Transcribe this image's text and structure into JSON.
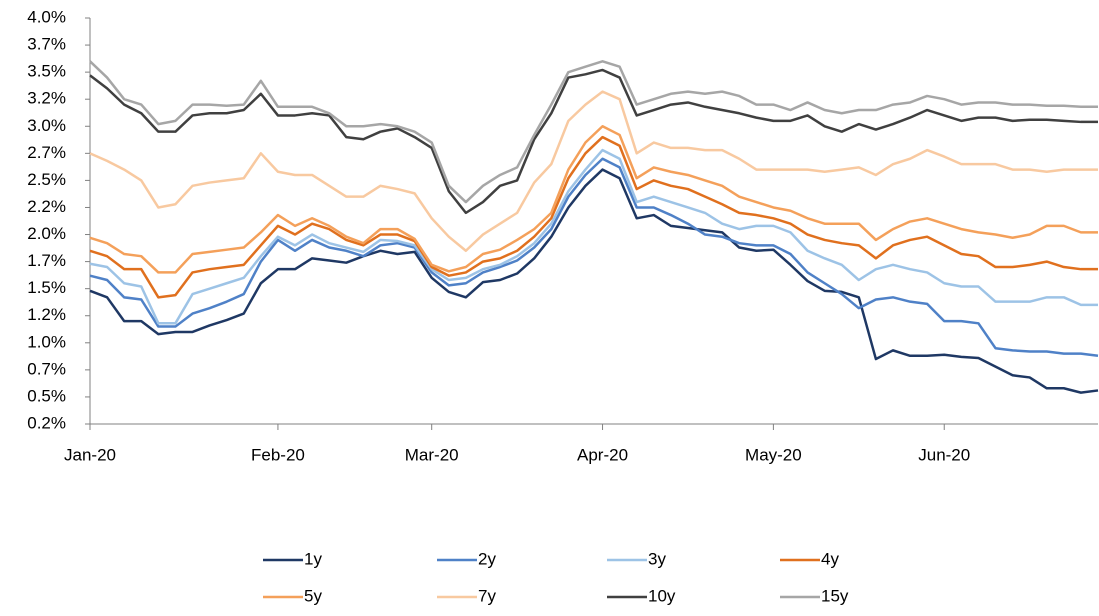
{
  "chart_data": {
    "type": "line",
    "categories": [
      "Jan-20",
      null,
      null,
      null,
      null,
      null,
      null,
      null,
      null,
      null,
      null,
      "Feb-20",
      null,
      null,
      null,
      null,
      null,
      null,
      null,
      null,
      "Mar-20",
      null,
      null,
      null,
      null,
      null,
      null,
      null,
      null,
      null,
      "Apr-20",
      null,
      null,
      null,
      null,
      null,
      null,
      null,
      null,
      null,
      "May-20",
      null,
      null,
      null,
      null,
      null,
      null,
      null,
      null,
      null,
      "Jun-20",
      null,
      null,
      null,
      null,
      null,
      null,
      null,
      null,
      null
    ],
    "ylim": [
      0.25,
      4.0
    ],
    "yticks": [
      {
        "value": 0.25,
        "label": "0.2%"
      },
      {
        "value": 0.5,
        "label": "0.5%"
      },
      {
        "value": 0.75,
        "label": "0.7%"
      },
      {
        "value": 1.0,
        "label": "1.0%"
      },
      {
        "value": 1.25,
        "label": "1.2%"
      },
      {
        "value": 1.5,
        "label": "1.5%"
      },
      {
        "value": 1.75,
        "label": "1.7%"
      },
      {
        "value": 2.0,
        "label": "2.0%"
      },
      {
        "value": 2.25,
        "label": "2.2%"
      },
      {
        "value": 2.5,
        "label": "2.5%"
      },
      {
        "value": 2.75,
        "label": "2.7%"
      },
      {
        "value": 3.0,
        "label": "3.0%"
      },
      {
        "value": 3.25,
        "label": "3.2%"
      },
      {
        "value": 3.5,
        "label": "3.5%"
      },
      {
        "value": 3.75,
        "label": "3.7%"
      },
      {
        "value": 4.0,
        "label": "4.0%"
      }
    ],
    "grid": false,
    "legend": "bottom",
    "series": [
      {
        "name": "1y",
        "color": "#1f3864",
        "values": [
          1.48,
          1.42,
          1.2,
          1.2,
          1.08,
          1.1,
          1.1,
          1.16,
          1.21,
          1.27,
          1.55,
          1.68,
          1.68,
          1.78,
          1.76,
          1.74,
          1.8,
          1.85,
          1.82,
          1.84,
          1.6,
          1.47,
          1.42,
          1.56,
          1.58,
          1.64,
          1.78,
          1.98,
          2.25,
          2.45,
          2.6,
          2.52,
          2.15,
          2.18,
          2.08,
          2.06,
          2.04,
          2.02,
          1.88,
          1.85,
          1.86,
          1.72,
          1.57,
          1.48,
          1.47,
          1.42,
          0.85,
          0.93,
          0.88,
          0.88,
          0.89,
          0.87,
          0.86,
          0.78,
          0.7,
          0.68,
          0.58,
          0.58,
          0.54,
          0.56
        ]
      },
      {
        "name": "2y",
        "color": "#4f81c7",
        "values": [
          1.62,
          1.58,
          1.42,
          1.4,
          1.15,
          1.15,
          1.27,
          1.32,
          1.38,
          1.45,
          1.75,
          1.95,
          1.85,
          1.95,
          1.88,
          1.85,
          1.8,
          1.9,
          1.92,
          1.88,
          1.65,
          1.53,
          1.55,
          1.65,
          1.7,
          1.76,
          1.88,
          2.05,
          2.35,
          2.55,
          2.7,
          2.62,
          2.25,
          2.25,
          2.18,
          2.1,
          2.0,
          1.98,
          1.92,
          1.9,
          1.9,
          1.82,
          1.65,
          1.55,
          1.45,
          1.32,
          1.4,
          1.42,
          1.38,
          1.36,
          1.2,
          1.2,
          1.18,
          0.95,
          0.93,
          0.92,
          0.92,
          0.9,
          0.9,
          0.88
        ]
      },
      {
        "name": "3y",
        "color": "#9dc3e6",
        "values": [
          1.73,
          1.7,
          1.55,
          1.52,
          1.18,
          1.18,
          1.45,
          1.5,
          1.55,
          1.6,
          1.8,
          1.98,
          1.9,
          2.0,
          1.92,
          1.88,
          1.84,
          1.95,
          1.94,
          1.9,
          1.68,
          1.58,
          1.6,
          1.68,
          1.72,
          1.8,
          1.92,
          2.1,
          2.4,
          2.6,
          2.78,
          2.7,
          2.3,
          2.35,
          2.3,
          2.25,
          2.2,
          2.1,
          2.05,
          2.08,
          2.08,
          2.02,
          1.85,
          1.78,
          1.72,
          1.58,
          1.68,
          1.72,
          1.68,
          1.65,
          1.55,
          1.52,
          1.52,
          1.38,
          1.38,
          1.38,
          1.42,
          1.42,
          1.35,
          1.35
        ]
      },
      {
        "name": "4y",
        "color": "#e0701e",
        "values": [
          1.85,
          1.8,
          1.68,
          1.68,
          1.42,
          1.44,
          1.65,
          1.68,
          1.7,
          1.72,
          1.9,
          2.08,
          2.0,
          2.1,
          2.05,
          1.95,
          1.9,
          2.0,
          2.0,
          1.94,
          1.7,
          1.62,
          1.65,
          1.75,
          1.78,
          1.85,
          1.98,
          2.15,
          2.52,
          2.75,
          2.9,
          2.82,
          2.42,
          2.5,
          2.45,
          2.42,
          2.35,
          2.28,
          2.2,
          2.18,
          2.15,
          2.1,
          2.0,
          1.95,
          1.92,
          1.9,
          1.78,
          1.9,
          1.95,
          1.98,
          1.9,
          1.82,
          1.8,
          1.7,
          1.7,
          1.72,
          1.75,
          1.7,
          1.68,
          1.68
        ]
      },
      {
        "name": "5y",
        "color": "#f4a05a",
        "values": [
          1.97,
          1.92,
          1.82,
          1.8,
          1.65,
          1.65,
          1.82,
          1.84,
          1.86,
          1.88,
          2.02,
          2.18,
          2.08,
          2.15,
          2.08,
          1.98,
          1.92,
          2.05,
          2.05,
          1.96,
          1.72,
          1.66,
          1.7,
          1.82,
          1.86,
          1.95,
          2.05,
          2.2,
          2.6,
          2.85,
          3.0,
          2.92,
          2.52,
          2.62,
          2.58,
          2.55,
          2.5,
          2.45,
          2.35,
          2.3,
          2.25,
          2.22,
          2.15,
          2.1,
          2.1,
          2.1,
          1.95,
          2.05,
          2.12,
          2.15,
          2.1,
          2.05,
          2.02,
          2.0,
          1.97,
          2.0,
          2.08,
          2.08,
          2.02,
          2.02
        ]
      },
      {
        "name": "7y",
        "color": "#f8c9a0",
        "values": [
          2.75,
          2.68,
          2.6,
          2.5,
          2.25,
          2.28,
          2.45,
          2.48,
          2.5,
          2.52,
          2.75,
          2.58,
          2.55,
          2.55,
          2.45,
          2.35,
          2.35,
          2.45,
          2.42,
          2.38,
          2.15,
          1.98,
          1.85,
          2.0,
          2.1,
          2.2,
          2.48,
          2.65,
          3.05,
          3.2,
          3.32,
          3.25,
          2.75,
          2.85,
          2.8,
          2.8,
          2.78,
          2.78,
          2.7,
          2.6,
          2.6,
          2.6,
          2.6,
          2.58,
          2.6,
          2.62,
          2.55,
          2.65,
          2.7,
          2.78,
          2.72,
          2.65,
          2.65,
          2.65,
          2.6,
          2.6,
          2.58,
          2.6,
          2.6,
          2.6
        ]
      },
      {
        "name": "10y",
        "color": "#404040",
        "values": [
          3.47,
          3.35,
          3.2,
          3.12,
          2.95,
          2.95,
          3.1,
          3.12,
          3.12,
          3.15,
          3.3,
          3.1,
          3.1,
          3.12,
          3.1,
          2.9,
          2.88,
          2.95,
          2.98,
          2.9,
          2.8,
          2.4,
          2.2,
          2.3,
          2.45,
          2.5,
          2.88,
          3.12,
          3.45,
          3.48,
          3.52,
          3.45,
          3.1,
          3.15,
          3.2,
          3.22,
          3.18,
          3.15,
          3.12,
          3.08,
          3.05,
          3.05,
          3.1,
          3.0,
          2.95,
          3.02,
          2.97,
          3.02,
          3.08,
          3.15,
          3.1,
          3.05,
          3.08,
          3.08,
          3.05,
          3.06,
          3.06,
          3.05,
          3.04,
          3.04
        ]
      },
      {
        "name": "15y",
        "color": "#a6a6a6",
        "values": [
          3.6,
          3.45,
          3.25,
          3.2,
          3.02,
          3.05,
          3.2,
          3.2,
          3.19,
          3.2,
          3.42,
          3.18,
          3.18,
          3.18,
          3.12,
          3.0,
          3.0,
          3.02,
          3.0,
          2.95,
          2.85,
          2.45,
          2.3,
          2.45,
          2.55,
          2.62,
          2.92,
          3.2,
          3.5,
          3.55,
          3.6,
          3.55,
          3.2,
          3.25,
          3.3,
          3.32,
          3.3,
          3.32,
          3.28,
          3.2,
          3.2,
          3.15,
          3.22,
          3.15,
          3.12,
          3.15,
          3.15,
          3.2,
          3.22,
          3.28,
          3.25,
          3.2,
          3.22,
          3.22,
          3.2,
          3.2,
          3.19,
          3.19,
          3.18,
          3.18
        ]
      }
    ]
  }
}
